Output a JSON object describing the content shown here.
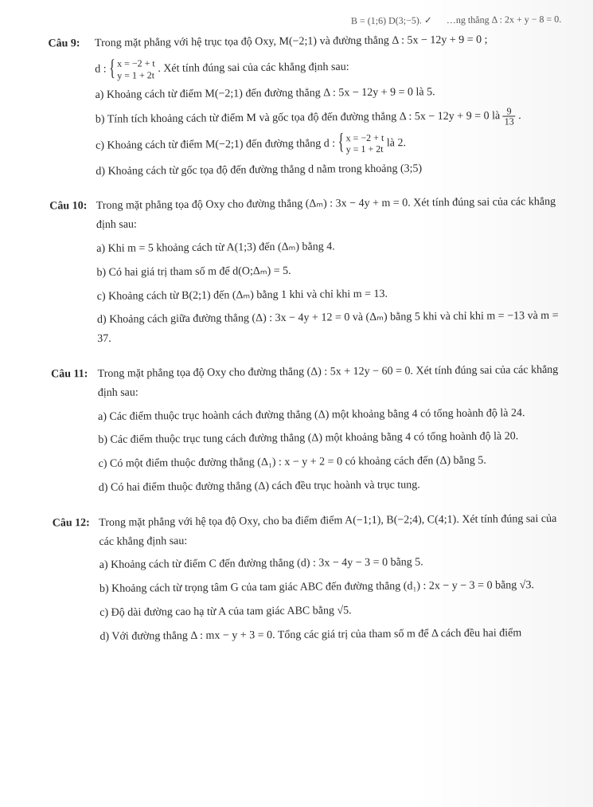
{
  "top_fragment_left": "B = (1;6) D(3;−5). ✓",
  "top_fragment_right": "…ng thẳng Δ : 2x + y − 8 = 0.",
  "q9": {
    "label": "Câu 9:",
    "stem_a": "Trong mặt phẳng với hệ trục tọa độ Oxy, M(−2;1) và đường thẳng Δ : 5x − 12y + 9 = 0 ;",
    "stem_d_prefix": "d : ",
    "sys_l1": "x = −2 + t",
    "sys_l2": "y = 1 + 2t",
    "stem_d_suffix": ". Xét tính đúng sai của các khẳng định sau:",
    "a": "a) Khoảng cách từ điểm M(−2;1) đến đường thẳng Δ : 5x − 12y + 9 = 0 là 5.",
    "b_pre": "b) Tính tích khoảng cách từ điểm M và gốc tọa độ đến đường thẳng Δ : 5x − 12y + 9 = 0 là ",
    "b_num": "9",
    "b_den": "13",
    "b_post": ".",
    "c_pre": "c) Khoảng cách từ điểm M(−2;1) đến đường thẳng d : ",
    "c_sys_l1": "x = −2 + t",
    "c_sys_l2": "y = 1 + 2t",
    "c_post": " là 2.",
    "d": "d) Khoảng cách từ gốc tọa độ đến đường thẳng d nằm trong khoảng (3;5)"
  },
  "q10": {
    "label": "Câu 10:",
    "stem": "Trong mặt phẳng tọa độ Oxy cho đường thẳng (Δₘ) : 3x − 4y + m = 0. Xét tính đúng sai của các khẳng định sau:",
    "a": "a) Khi m = 5 khoảng cách từ A(1;3) đến (Δₘ) bằng 4.",
    "b": "b) Có hai giá trị tham số m để d(O;Δₘ) = 5.",
    "c": "c) Khoảng cách từ B(2;1) đến (Δₘ) bằng 1 khi và chỉ khi m = 13.",
    "d": "d) Khoảng cách giữa đường thẳng (Δ) : 3x − 4y + 12 = 0 và (Δₘ) bằng 5 khi và chỉ khi m = −13 và m = 37."
  },
  "q11": {
    "label": "Câu 11:",
    "stem": "Trong mặt phẳng tọa độ Oxy cho đường thẳng (Δ) : 5x + 12y − 60 = 0. Xét tính đúng sai của các khẳng định sau:",
    "a": "a) Các điểm thuộc trục hoành cách đường thẳng (Δ) một khoảng bằng 4 có tổng hoành độ là 24.",
    "b": "b) Các điểm thuộc trục tung cách đường thẳng (Δ) một khoảng bằng 4 có tổng hoành độ là 20.",
    "c": "c) Có một điểm thuộc đường thẳng (Δ₁) : x − y + 2 = 0 có khoảng cách đến (Δ) bằng 5.",
    "d": "d) Có hai điểm thuộc đường thẳng (Δ) cách đều trục hoành và trục tung."
  },
  "q12": {
    "label": "Câu 12:",
    "stem": "Trong mặt phẳng với hệ tọa độ Oxy, cho ba điểm điểm A(−1;1), B(−2;4), C(4;1). Xét tính đúng sai của các khẳng định sau:",
    "a": "a) Khoảng cách từ điểm C đến đường thẳng (d) : 3x − 4y − 3 = 0 bằng 5.",
    "b": "b) Khoảng cách từ trọng tâm G của tam giác ABC đến đường thẳng (d₁) : 2x − y − 3 = 0 bằng √3.",
    "c": "c) Độ dài đường cao hạ từ A của tam giác ABC bằng √5.",
    "d": "d) Với đường thẳng Δ : mx − y + 3 = 0. Tổng các giá trị của tham số m để Δ cách đều hai điểm"
  }
}
